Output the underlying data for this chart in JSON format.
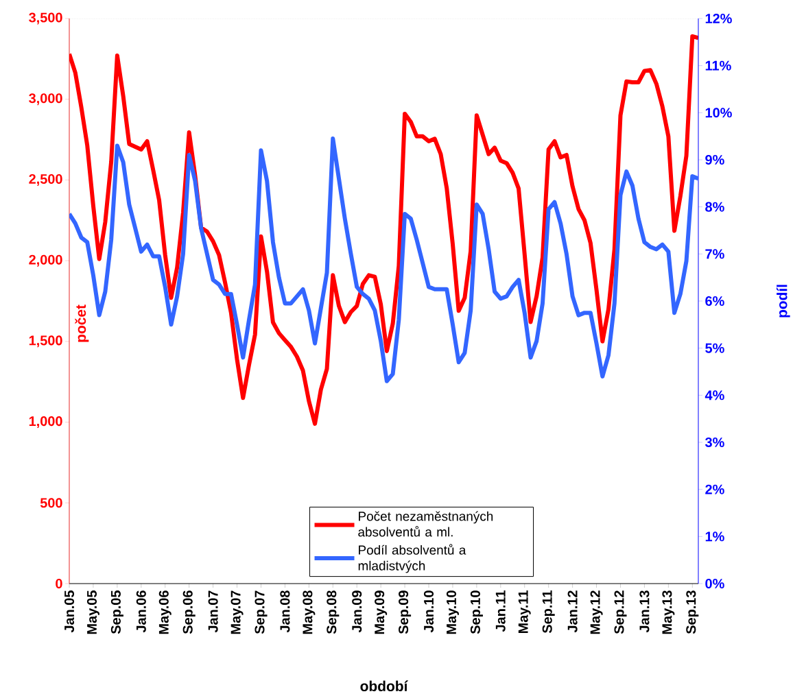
{
  "chart_data": {
    "type": "line",
    "xlabel": "období",
    "ylabel": "počet",
    "y2label": "podíl",
    "categories": [
      "Jan.05",
      null,
      null,
      null,
      "May.05",
      null,
      null,
      null,
      "Sep.05",
      null,
      null,
      null,
      "Jan.06",
      null,
      null,
      null,
      "May.06",
      null,
      null,
      null,
      "Sep.06",
      null,
      null,
      null,
      "Jan.07",
      null,
      null,
      null,
      "May.07",
      null,
      null,
      null,
      "Sep.07",
      null,
      null,
      null,
      "Jan.08",
      null,
      null,
      null,
      "May.08",
      null,
      null,
      null,
      "Sep.08",
      null,
      null,
      null,
      "Jan.09",
      null,
      null,
      null,
      "May.09",
      null,
      null,
      null,
      "Sep.09",
      null,
      null,
      null,
      "Jan.10",
      null,
      null,
      null,
      "May.10",
      null,
      null,
      null,
      "Sep.10",
      null,
      null,
      null,
      "Jan.11",
      null,
      null,
      null,
      "May.11",
      null,
      null,
      null,
      "Sep.11",
      null,
      null,
      null,
      "Jan.12",
      null,
      null,
      null,
      "May.12",
      null,
      null,
      null,
      "Sep.12",
      null,
      null,
      null,
      "Jan.13",
      null,
      null,
      null,
      "May.13",
      null,
      null,
      null,
      "Sep.13",
      null
    ],
    "series": [
      {
        "name": "Počet nezaměstnaných absolventů a ml.",
        "color": "#ff0000",
        "values": [
          3280,
          3165,
          2952,
          2714,
          2341,
          2010,
          2239,
          2613,
          3271,
          3020,
          2723,
          2706,
          2689,
          2740,
          2562,
          2375,
          2035,
          1770,
          1958,
          2298,
          2795,
          2528,
          2205,
          2180,
          2120,
          2035,
          1865,
          1678,
          1389,
          1150,
          1355,
          1542,
          2150,
          1933,
          1618,
          1551,
          1508,
          1466,
          1406,
          1320,
          1130,
          990,
          1202,
          1330,
          1910,
          1720,
          1620,
          1682,
          1720,
          1856,
          1910,
          1900,
          1729,
          1440,
          1610,
          1967,
          2910,
          2860,
          2770,
          2770,
          2740,
          2755,
          2660,
          2450,
          2103,
          1690,
          1770,
          2060,
          2900,
          2780,
          2660,
          2700,
          2620,
          2604,
          2545,
          2447,
          2040,
          1620,
          1780,
          2020,
          2690,
          2740,
          2640,
          2655,
          2460,
          2320,
          2250,
          2110,
          1820,
          1500,
          1700,
          2070,
          2900,
          3110,
          3105,
          3105,
          3175,
          3180,
          3095,
          2955,
          2770,
          2185,
          2400,
          2650,
          3390,
          3380
        ]
      },
      {
        "name": "Podíl absolventů a mladistvých",
        "color": "#3366ff",
        "axis": "y2",
        "values": [
          7.85,
          7.65,
          7.35,
          7.25,
          6.55,
          5.7,
          6.2,
          7.3,
          9.3,
          8.95,
          8.05,
          7.55,
          7.05,
          7.2,
          6.95,
          6.95,
          6.3,
          5.5,
          6.1,
          7.0,
          9.1,
          8.55,
          7.55,
          7.0,
          6.45,
          6.35,
          6.15,
          6.15,
          5.5,
          4.8,
          5.6,
          6.35,
          9.2,
          8.55,
          7.25,
          6.5,
          5.95,
          5.95,
          6.1,
          6.25,
          5.8,
          5.1,
          5.85,
          6.6,
          9.45,
          8.6,
          7.75,
          7.0,
          6.3,
          6.15,
          6.05,
          5.8,
          5.15,
          4.3,
          4.45,
          5.6,
          7.85,
          7.75,
          7.3,
          6.8,
          6.3,
          6.25,
          6.25,
          6.25,
          5.5,
          4.7,
          4.9,
          5.8,
          8.05,
          7.85,
          7.1,
          6.2,
          6.05,
          6.1,
          6.3,
          6.45,
          5.75,
          4.8,
          5.15,
          5.95,
          7.95,
          8.1,
          7.65,
          7.0,
          6.1,
          5.7,
          5.75,
          5.75,
          5.1,
          4.4,
          4.85,
          5.95,
          8.25,
          8.75,
          8.45,
          7.75,
          7.25,
          7.15,
          7.1,
          7.2,
          7.05,
          5.75,
          6.15,
          6.85,
          8.65,
          8.6
        ]
      }
    ],
    "ylim": [
      0,
      3500
    ],
    "yticks": [
      0,
      500,
      {
        "value": 1000,
        "label": "1,000"
      },
      {
        "value": 1500,
        "label": "1,500"
      },
      {
        "value": 2000,
        "label": "2,000"
      },
      {
        "value": 2500,
        "label": "2,500"
      },
      {
        "value": 3000,
        "label": "3,000"
      },
      {
        "value": 3500,
        "label": "3,500"
      }
    ],
    "y2lim": [
      0,
      12
    ],
    "y2ticks": [
      {
        "value": 0,
        "label": "0%"
      },
      {
        "value": 1,
        "label": "1%"
      },
      {
        "value": 2,
        "label": "2%"
      },
      {
        "value": 3,
        "label": "3%"
      },
      {
        "value": 4,
        "label": "4%"
      },
      {
        "value": 5,
        "label": "5%"
      },
      {
        "value": 6,
        "label": "6%"
      },
      {
        "value": 7,
        "label": "7%"
      },
      {
        "value": 8,
        "label": "8%"
      },
      {
        "value": 9,
        "label": "9%"
      },
      {
        "value": 10,
        "label": "10%"
      },
      {
        "value": 11,
        "label": "11%"
      },
      {
        "value": 12,
        "label": "12%"
      }
    ],
    "legend": "bottom"
  }
}
